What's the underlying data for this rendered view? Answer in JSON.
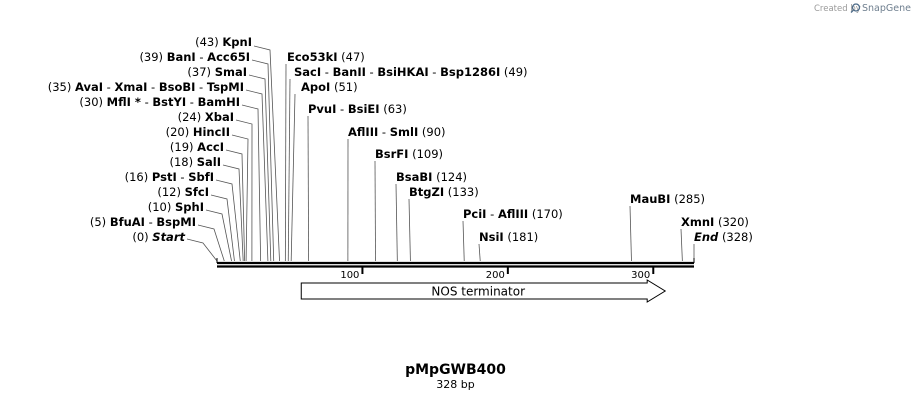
{
  "header": {
    "credit_text": "Created by",
    "brand_text": "SnapGene"
  },
  "plasmid": {
    "name": "pMpGWB400",
    "length_label": "328 bp",
    "length_bp": 328
  },
  "colors": {
    "line": "#000000",
    "leader": "#555555",
    "feature_fill": "#ffffff",
    "credit": "#9a9a9a"
  },
  "axis": {
    "ticks": [
      {
        "bp": 100,
        "label": "100"
      },
      {
        "bp": 200,
        "label": "200"
      },
      {
        "bp": 300,
        "label": "300"
      }
    ]
  },
  "feature": {
    "name": "NOS terminator",
    "start_bp": 60,
    "end_bp": 313,
    "direction": "forward"
  },
  "sites": [
    {
      "pos_label": "(43)",
      "bp": 43,
      "parts": [
        "KpnI"
      ]
    },
    {
      "pos_label": "(39)",
      "bp": 39,
      "parts": [
        "BanI",
        "Acc65I"
      ]
    },
    {
      "pos_label": "(37)",
      "bp": 37,
      "parts": [
        "SmaI"
      ]
    },
    {
      "pos_label": "(35)",
      "bp": 35,
      "parts": [
        "AvaI",
        "XmaI",
        "BsoBI",
        "TspMI"
      ]
    },
    {
      "pos_label": "(30)",
      "bp": 30,
      "parts": [
        "MflI *",
        "BstYI",
        "BamHI"
      ]
    },
    {
      "pos_label": "(24)",
      "bp": 24,
      "parts": [
        "XbaI"
      ]
    },
    {
      "pos_label": "(20)",
      "bp": 20,
      "parts": [
        "HincII"
      ]
    },
    {
      "pos_label": "(19)",
      "bp": 19,
      "parts": [
        "AccI"
      ]
    },
    {
      "pos_label": "(18)",
      "bp": 18,
      "parts": [
        "SalI"
      ]
    },
    {
      "pos_label": "(16)",
      "bp": 16,
      "parts": [
        "PstI",
        "SbfI"
      ]
    },
    {
      "pos_label": "(12)",
      "bp": 12,
      "parts": [
        "SfcI"
      ]
    },
    {
      "pos_label": "(10)",
      "bp": 10,
      "parts": [
        "SphI"
      ]
    },
    {
      "pos_label": "(5)",
      "bp": 5,
      "parts": [
        "BfuAI",
        "BspMI"
      ]
    },
    {
      "pos_label": "(0)",
      "bp": 0,
      "parts": [
        "Start"
      ],
      "italic": true
    },
    {
      "pos_label": "(47)",
      "bp": 47,
      "parts": [
        "Eco53kI"
      ]
    },
    {
      "pos_label": "(49)",
      "bp": 49,
      "parts": [
        "SacI",
        "BanII",
        "BsiHKAI",
        "Bsp1286I"
      ]
    },
    {
      "pos_label": "(51)",
      "bp": 51,
      "parts": [
        "ApoI"
      ]
    },
    {
      "pos_label": "(63)",
      "bp": 63,
      "parts": [
        "PvuI",
        "BsiEI"
      ]
    },
    {
      "pos_label": "(90)",
      "bp": 90,
      "parts": [
        "AflIII",
        "SmlI"
      ]
    },
    {
      "pos_label": "(109)",
      "bp": 109,
      "parts": [
        "BsrFI"
      ]
    },
    {
      "pos_label": "(124)",
      "bp": 124,
      "parts": [
        "BsaBI"
      ]
    },
    {
      "pos_label": "(133)",
      "bp": 133,
      "parts": [
        "BtgZI"
      ]
    },
    {
      "pos_label": "(170)",
      "bp": 170,
      "parts": [
        "PciI",
        "AflIII"
      ]
    },
    {
      "pos_label": "(181)",
      "bp": 181,
      "parts": [
        "NsiI"
      ]
    },
    {
      "pos_label": "(285)",
      "bp": 285,
      "parts": [
        "MauBI"
      ]
    },
    {
      "pos_label": "(320)",
      "bp": 320,
      "parts": [
        "XmnI"
      ]
    },
    {
      "pos_label": "(328)",
      "bp": 328,
      "parts": [
        "End"
      ],
      "italic": true
    }
  ]
}
